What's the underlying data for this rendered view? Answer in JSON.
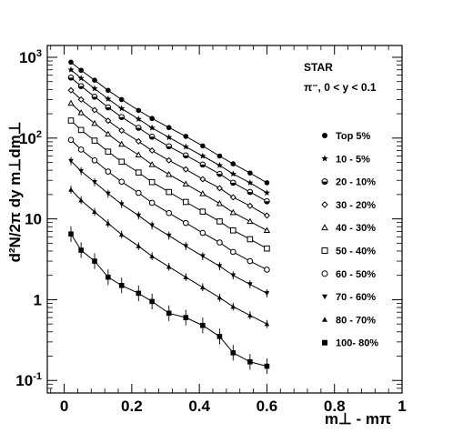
{
  "chart_data": {
    "type": "scatter",
    "title": "",
    "xlabel": "m⊥ - mπ",
    "ylabel": "d²N/2π dy m⊥dm⊥",
    "xlim": [
      -0.05,
      1.0
    ],
    "ylim": [
      0.07,
      1400
    ],
    "yscale": "log",
    "grid": false,
    "legend_position": "right",
    "x_ticks": [
      0,
      0.2,
      0.4,
      0.6,
      0.8,
      1
    ],
    "x_tick_labels": [
      "0",
      "0.2",
      "0.4",
      "0.6",
      "0.8",
      "1"
    ],
    "y_ticks": [
      0.1,
      1,
      10,
      100,
      1000
    ],
    "y_tick_labels": [
      {
        "base": "10",
        "exp": "-1"
      },
      {
        "base": "1",
        "exp": ""
      },
      {
        "base": "10",
        "exp": ""
      },
      {
        "base": "10",
        "exp": "2"
      },
      {
        "base": "10",
        "exp": "3"
      }
    ],
    "annotations": [
      "STAR",
      "π⁻, 0 < y < 0.1"
    ],
    "x": [
      0.02,
      0.05,
      0.09,
      0.13,
      0.17,
      0.22,
      0.26,
      0.31,
      0.36,
      0.41,
      0.46,
      0.5,
      0.55,
      0.6
    ],
    "series": [
      {
        "name": "Top 5%",
        "marker": "circle-filled",
        "values": [
          870,
          690,
          520,
          390,
          300,
          220,
          175,
          135,
          105,
          80,
          60,
          48,
          37,
          28
        ]
      },
      {
        "name": "10 - 5%",
        "marker": "star",
        "values": [
          700,
          550,
          410,
          305,
          232,
          172,
          134,
          102,
          78,
          60,
          46,
          36,
          28,
          21
        ]
      },
      {
        "name": "20 - 10%",
        "marker": "circle-half",
        "values": [
          560,
          440,
          325,
          240,
          182,
          134,
          104,
          79,
          61,
          47,
          36,
          28,
          21.5,
          16.5
        ]
      },
      {
        "name": "30 - 20%",
        "marker": "diamond-open",
        "values": [
          390,
          300,
          222,
          164,
          124,
          91,
          70,
          53,
          41,
          31,
          24,
          18.5,
          14.5,
          11
        ]
      },
      {
        "name": "40 - 30%",
        "marker": "triangle-open",
        "values": [
          270,
          206,
          152,
          112,
          84,
          62,
          47,
          35.5,
          27,
          20.5,
          15.5,
          12,
          9.3,
          7.2
        ]
      },
      {
        "name": "50 - 40%",
        "marker": "square-open",
        "values": [
          165,
          126,
          93,
          68,
          51,
          37.5,
          28.5,
          21.5,
          16.2,
          12.3,
          9.3,
          7.2,
          5.6,
          4.3
        ]
      },
      {
        "name": "60 - 50%",
        "marker": "circle-open",
        "values": [
          95,
          72,
          53,
          38.5,
          28.8,
          21,
          15.8,
          11.8,
          8.9,
          6.7,
          5.1,
          3.9,
          3,
          2.35
        ]
      },
      {
        "name": "70 - 60%",
        "marker": "triangle-down-filled",
        "values": [
          52,
          39,
          28.5,
          20.5,
          15.2,
          11,
          8.3,
          6.2,
          4.6,
          3.45,
          2.6,
          2,
          1.55,
          1.2
        ]
      },
      {
        "name": "80 - 70%",
        "marker": "triangle-up-filled",
        "values": [
          23,
          17,
          12.2,
          8.8,
          6.4,
          4.6,
          3.45,
          2.55,
          1.9,
          1.42,
          1.06,
          0.82,
          0.64,
          0.5
        ]
      },
      {
        "name": "100- 80%",
        "marker": "square-filled",
        "values": [
          6.5,
          4.1,
          3,
          1.9,
          1.5,
          1.2,
          0.95,
          0.68,
          0.6,
          0.48,
          0.35,
          0.22,
          0.17,
          0.15
        ]
      }
    ]
  }
}
